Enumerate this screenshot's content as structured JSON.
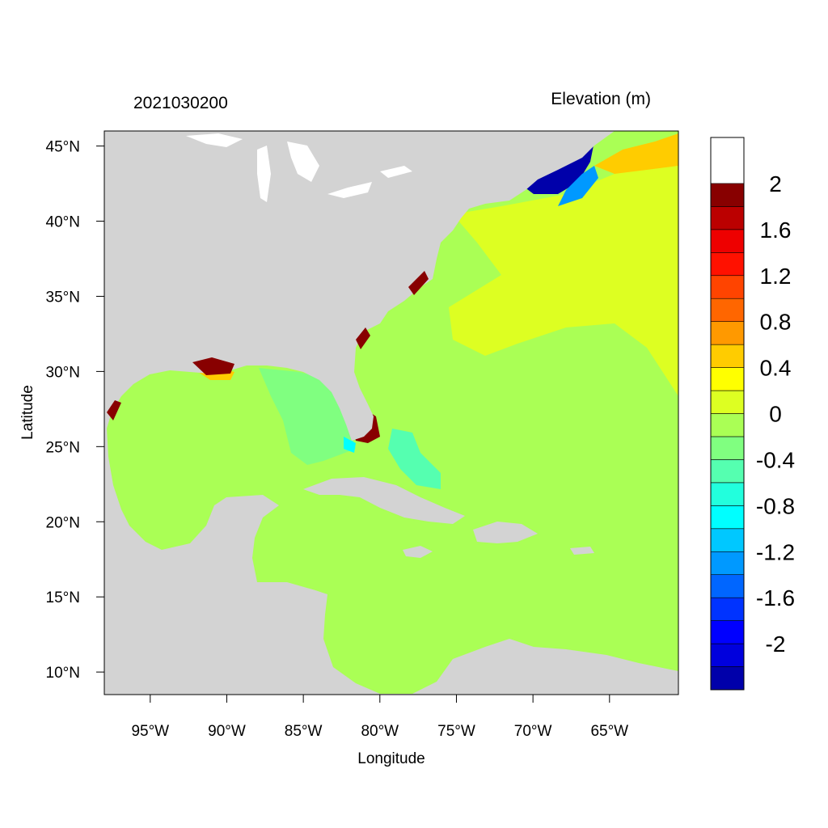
{
  "chart_data": {
    "type": "heatmap",
    "title_left": "2021030200",
    "title_right": "Elevation (m)",
    "xlabel": "Longitude",
    "ylabel": "Latitude",
    "xlim": [
      -98,
      -60.5
    ],
    "ylim": [
      8.5,
      46
    ],
    "x_ticks": [
      {
        "value": -95,
        "label": "95°W"
      },
      {
        "value": -90,
        "label": "90°W"
      },
      {
        "value": -85,
        "label": "85°W"
      },
      {
        "value": -80,
        "label": "80°W"
      },
      {
        "value": -75,
        "label": "75°W"
      },
      {
        "value": -70,
        "label": "70°W"
      },
      {
        "value": -65,
        "label": "65°W"
      }
    ],
    "y_ticks": [
      {
        "value": 45,
        "label": "45°N"
      },
      {
        "value": 40,
        "label": "40°N"
      },
      {
        "value": 35,
        "label": "35°N"
      },
      {
        "value": 30,
        "label": "30°N"
      },
      {
        "value": 25,
        "label": "25°N"
      },
      {
        "value": 20,
        "label": "20°N"
      },
      {
        "value": 15,
        "label": "15°N"
      },
      {
        "value": 10,
        "label": "10°N"
      }
    ],
    "colorbar": {
      "levels": [
        -2.4,
        -2.2,
        -2.0,
        -1.8,
        -1.6,
        -1.4,
        -1.2,
        -1.0,
        -0.8,
        -0.6,
        -0.4,
        -0.2,
        0.0,
        0.2,
        0.4,
        0.6,
        0.8,
        1.0,
        1.2,
        1.4,
        1.6,
        1.8,
        2.0,
        2.2,
        2.4
      ],
      "colors": [
        "#0000aa",
        "#0000dd",
        "#0000ff",
        "#0033ff",
        "#0066ff",
        "#0099ff",
        "#00c8ff",
        "#00ffff",
        "#22ffdd",
        "#55ffb0",
        "#80ff80",
        "#aaff55",
        "#ddff22",
        "#ffff00",
        "#ffcc00",
        "#ff9900",
        "#ff6600",
        "#ff4400",
        "#ff1100",
        "#ee0000",
        "#bb0000",
        "#880000"
      ],
      "tick_labels": [
        {
          "value": 2.0,
          "label": "2"
        },
        {
          "value": 1.6,
          "label": "1.6"
        },
        {
          "value": 1.2,
          "label": "1.2"
        },
        {
          "value": 0.8,
          "label": "0.8"
        },
        {
          "value": 0.4,
          "label": "0.4"
        },
        {
          "value": 0.0,
          "label": "0"
        },
        {
          "value": -0.4,
          "label": "-0.4"
        },
        {
          "value": -0.8,
          "label": "-0.8"
        },
        {
          "value": -1.2,
          "label": "-1.2"
        },
        {
          "value": -1.6,
          "label": "-1.6"
        },
        {
          "value": -2.0,
          "label": "-2"
        }
      ]
    },
    "land_color": "#d3d3d3",
    "ocean_base_color": "#aaff55"
  }
}
